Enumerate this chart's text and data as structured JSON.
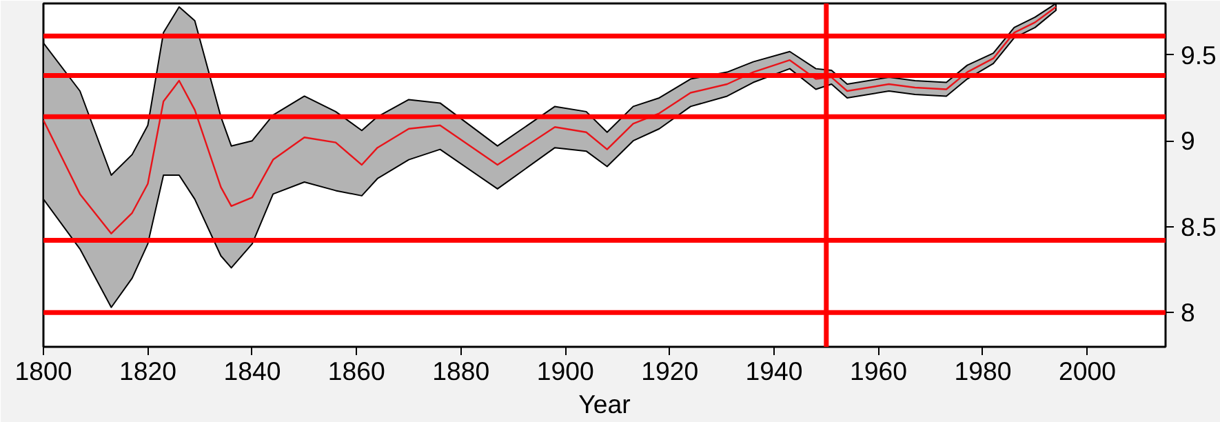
{
  "chart_data": {
    "type": "line",
    "xlabel": "Year",
    "x": [
      1800,
      1807,
      1813,
      1817,
      1820,
      1823,
      1826,
      1829,
      1834,
      1836,
      1840,
      1844,
      1850,
      1856,
      1861,
      1864,
      1870,
      1876,
      1887,
      1898,
      1904,
      1908,
      1913,
      1918,
      1924,
      1931,
      1936,
      1943,
      1948,
      1951,
      1954,
      1962,
      1967,
      1973,
      1977,
      1982,
      1986,
      1990,
      1994
    ],
    "series": [
      {
        "color": "#e8141a",
        "values": [
          9.12,
          8.69,
          8.46,
          8.58,
          8.75,
          9.23,
          9.35,
          9.18,
          8.73,
          8.62,
          8.67,
          8.89,
          9.02,
          8.99,
          8.86,
          8.96,
          9.07,
          9.09,
          8.86,
          9.08,
          9.05,
          8.95,
          9.1,
          9.16,
          9.28,
          9.33,
          9.4,
          9.47,
          9.36,
          9.37,
          9.29,
          9.33,
          9.31,
          9.3,
          9.4,
          9.48,
          9.63,
          9.69,
          9.78
        ],
        "upper": [
          9.57,
          9.29,
          8.8,
          8.92,
          9.09,
          9.63,
          9.78,
          9.7,
          9.14,
          8.97,
          9.0,
          9.15,
          9.26,
          9.17,
          9.06,
          9.14,
          9.24,
          9.22,
          8.97,
          9.2,
          9.17,
          9.05,
          9.2,
          9.25,
          9.36,
          9.4,
          9.46,
          9.52,
          9.42,
          9.41,
          9.33,
          9.37,
          9.35,
          9.34,
          9.44,
          9.51,
          9.66,
          9.72,
          9.8
        ],
        "lower": [
          8.66,
          8.37,
          8.03,
          8.2,
          8.4,
          8.8,
          8.8,
          8.66,
          8.33,
          8.26,
          8.4,
          8.69,
          8.76,
          8.71,
          8.68,
          8.78,
          8.89,
          8.95,
          8.72,
          8.96,
          8.94,
          8.85,
          9.0,
          9.07,
          9.2,
          9.26,
          9.34,
          9.42,
          9.3,
          9.33,
          9.25,
          9.29,
          9.27,
          9.26,
          9.36,
          9.45,
          9.6,
          9.66,
          9.76
        ]
      }
    ],
    "xlim": [
      1800,
      2015
    ],
    "xticks": [
      1800,
      1820,
      1840,
      1860,
      1880,
      1900,
      1920,
      1940,
      1960,
      1980,
      2000
    ],
    "ylim": [
      7.8,
      9.8
    ],
    "yticks": [
      8,
      8.5,
      9,
      9.5
    ],
    "ref_lines": [
      {
        "axis": "y",
        "value": 9.61,
        "color": "#ff0000"
      },
      {
        "axis": "y",
        "value": 9.38,
        "color": "#ff0000"
      },
      {
        "axis": "y",
        "value": 9.14,
        "color": "#ff0000"
      },
      {
        "axis": "y",
        "value": 8.42,
        "color": "#ff0000"
      },
      {
        "axis": "y",
        "value": 8.0,
        "color": "#ff0000"
      },
      {
        "axis": "x",
        "value": 1950,
        "color": "#ff0000"
      }
    ],
    "grid": false
  }
}
